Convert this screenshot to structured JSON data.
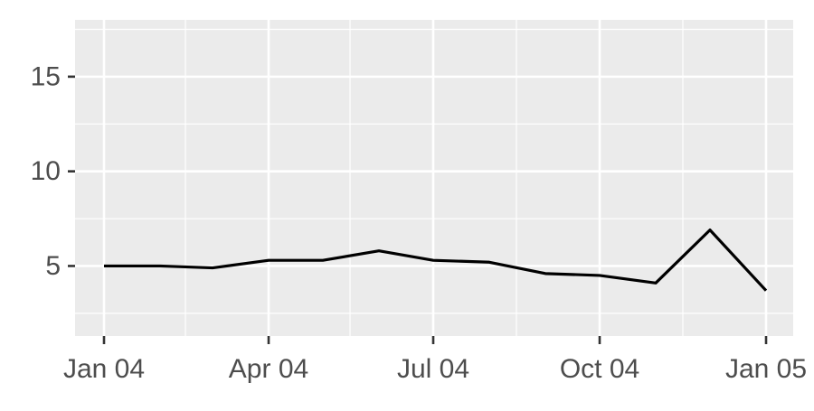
{
  "chart_data": {
    "type": "line",
    "title": "",
    "xlabel": "",
    "ylabel": "",
    "x": [
      "2004-01-01",
      "2004-02-01",
      "2004-03-01",
      "2004-04-01",
      "2004-05-01",
      "2004-06-01",
      "2004-07-01",
      "2004-08-01",
      "2004-09-01",
      "2004-10-01",
      "2004-11-01",
      "2004-12-01",
      "2005-01-01"
    ],
    "series": [
      {
        "name": "",
        "values": [
          5.0,
          5.0,
          4.9,
          5.3,
          5.3,
          5.8,
          5.3,
          5.2,
          4.6,
          4.5,
          4.1,
          6.9,
          3.7
        ]
      }
    ],
    "xlim": [
      "2003-12-16",
      "2005-01-16"
    ],
    "ylim": [
      1.3,
      18.0
    ],
    "x_ticks": [
      {
        "value": "2004-01-01",
        "label": "Jan 04"
      },
      {
        "value": "2004-04-01",
        "label": "Apr 04"
      },
      {
        "value": "2004-07-01",
        "label": "Jul 04"
      },
      {
        "value": "2004-10-01",
        "label": "Oct 04"
      },
      {
        "value": "2005-01-01",
        "label": "Jan 05"
      }
    ],
    "x_minor_ticks": [
      "2004-02-15",
      "2004-05-16",
      "2004-08-16",
      "2004-11-16"
    ],
    "y_ticks": [
      5,
      10,
      15
    ],
    "y_minor_ticks": [
      2.5,
      7.5,
      12.5,
      17.5
    ],
    "grid": true,
    "colors": {
      "panel_background": "#EBEBEB",
      "grid": "#FFFFFF",
      "line": "#000000",
      "axis_text": "#4D4D4D",
      "ticks": "#333333"
    }
  }
}
